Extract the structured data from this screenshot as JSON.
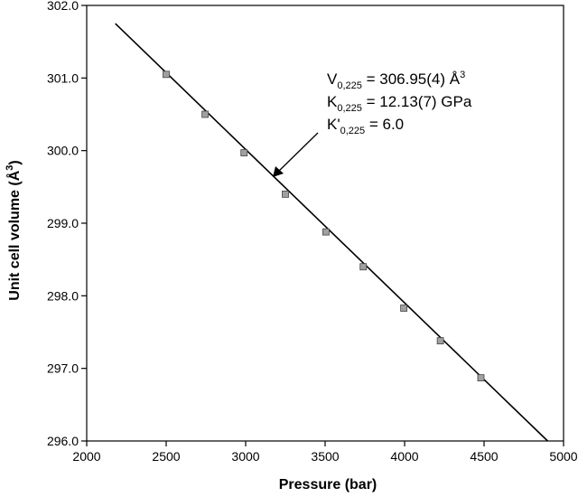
{
  "chart_data": {
    "type": "scatter",
    "xlabel": "Pressure (bar)",
    "ylabel": "Unit cell volume (Å",
    "ylabel_sup": "3",
    "ylabel_close": ")",
    "xlim": [
      2000,
      5000
    ],
    "ylim": [
      296.0,
      302.0
    ],
    "x_ticks": [
      2000,
      2500,
      3000,
      3500,
      4000,
      4500,
      5000
    ],
    "x_tick_labels": [
      "2000",
      "2500",
      "3000",
      "3500",
      "4000",
      "4500",
      "5000"
    ],
    "y_ticks": [
      296.0,
      297.0,
      298.0,
      299.0,
      300.0,
      301.0,
      302.0
    ],
    "y_tick_labels": [
      "296.0",
      "297.0",
      "298.0",
      "299.0",
      "300.0",
      "301.0",
      "302.0"
    ],
    "grid": false,
    "legend": "none",
    "points": [
      {
        "x": 2500,
        "y": 301.05
      },
      {
        "x": 2745,
        "y": 300.5
      },
      {
        "x": 2990,
        "y": 299.97
      },
      {
        "x": 3250,
        "y": 299.4
      },
      {
        "x": 3505,
        "y": 298.88
      },
      {
        "x": 3740,
        "y": 298.4
      },
      {
        "x": 3995,
        "y": 297.83
      },
      {
        "x": 4225,
        "y": 297.38
      },
      {
        "x": 4480,
        "y": 296.87
      }
    ],
    "fit_line": [
      {
        "x": 2180,
        "y": 301.75
      },
      {
        "x": 4900,
        "y": 296.0
      }
    ],
    "annotation": {
      "v_base": "V",
      "v_sub": "0,225",
      "v_value": " = 306.95(4) Å",
      "v_sup": "3",
      "k_base": "K",
      "k_sub": "0,225",
      "k_value": " = 12.13(7) GPa",
      "kp_base": "K'",
      "kp_sub": "0,225",
      "kp_value": " = 6.0"
    },
    "marker_color": "#a0a0a0",
    "line_color": "#000000"
  }
}
